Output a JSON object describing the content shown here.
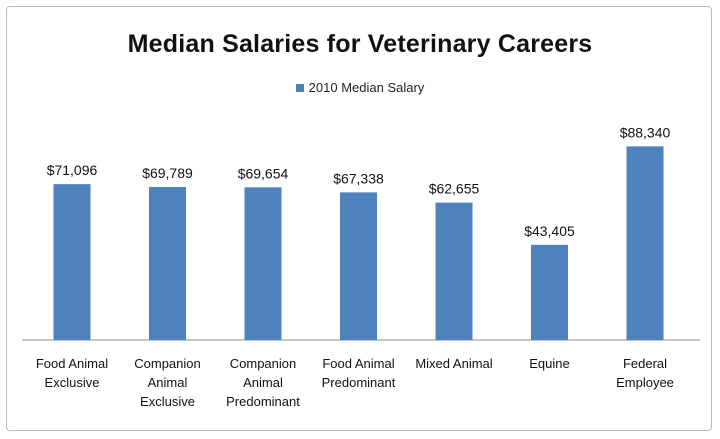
{
  "chart_data": {
    "type": "bar",
    "title": "Median Salaries for Veterinary Careers",
    "categories": [
      [
        "Food Animal",
        "Exclusive"
      ],
      [
        "Companion",
        "Animal",
        "Exclusive"
      ],
      [
        "Companion",
        "Animal",
        "Predominant"
      ],
      [
        "Food Animal",
        "Predominant"
      ],
      [
        "Mixed Animal"
      ],
      [
        "Equine"
      ],
      [
        "Federal",
        "Employee"
      ]
    ],
    "series": [
      {
        "name": "2010 Median Salary",
        "color": "#4f81bd",
        "values": [
          71096,
          69789,
          69654,
          67338,
          62655,
          43405,
          88340
        ],
        "labels": [
          "$71,096",
          "$69,789",
          "$69,654",
          "$67,338",
          "$62,655",
          "$43,405",
          "$88,340"
        ]
      }
    ],
    "ylim": [
      0,
      100000
    ],
    "grid": false,
    "legend_position": "top"
  }
}
